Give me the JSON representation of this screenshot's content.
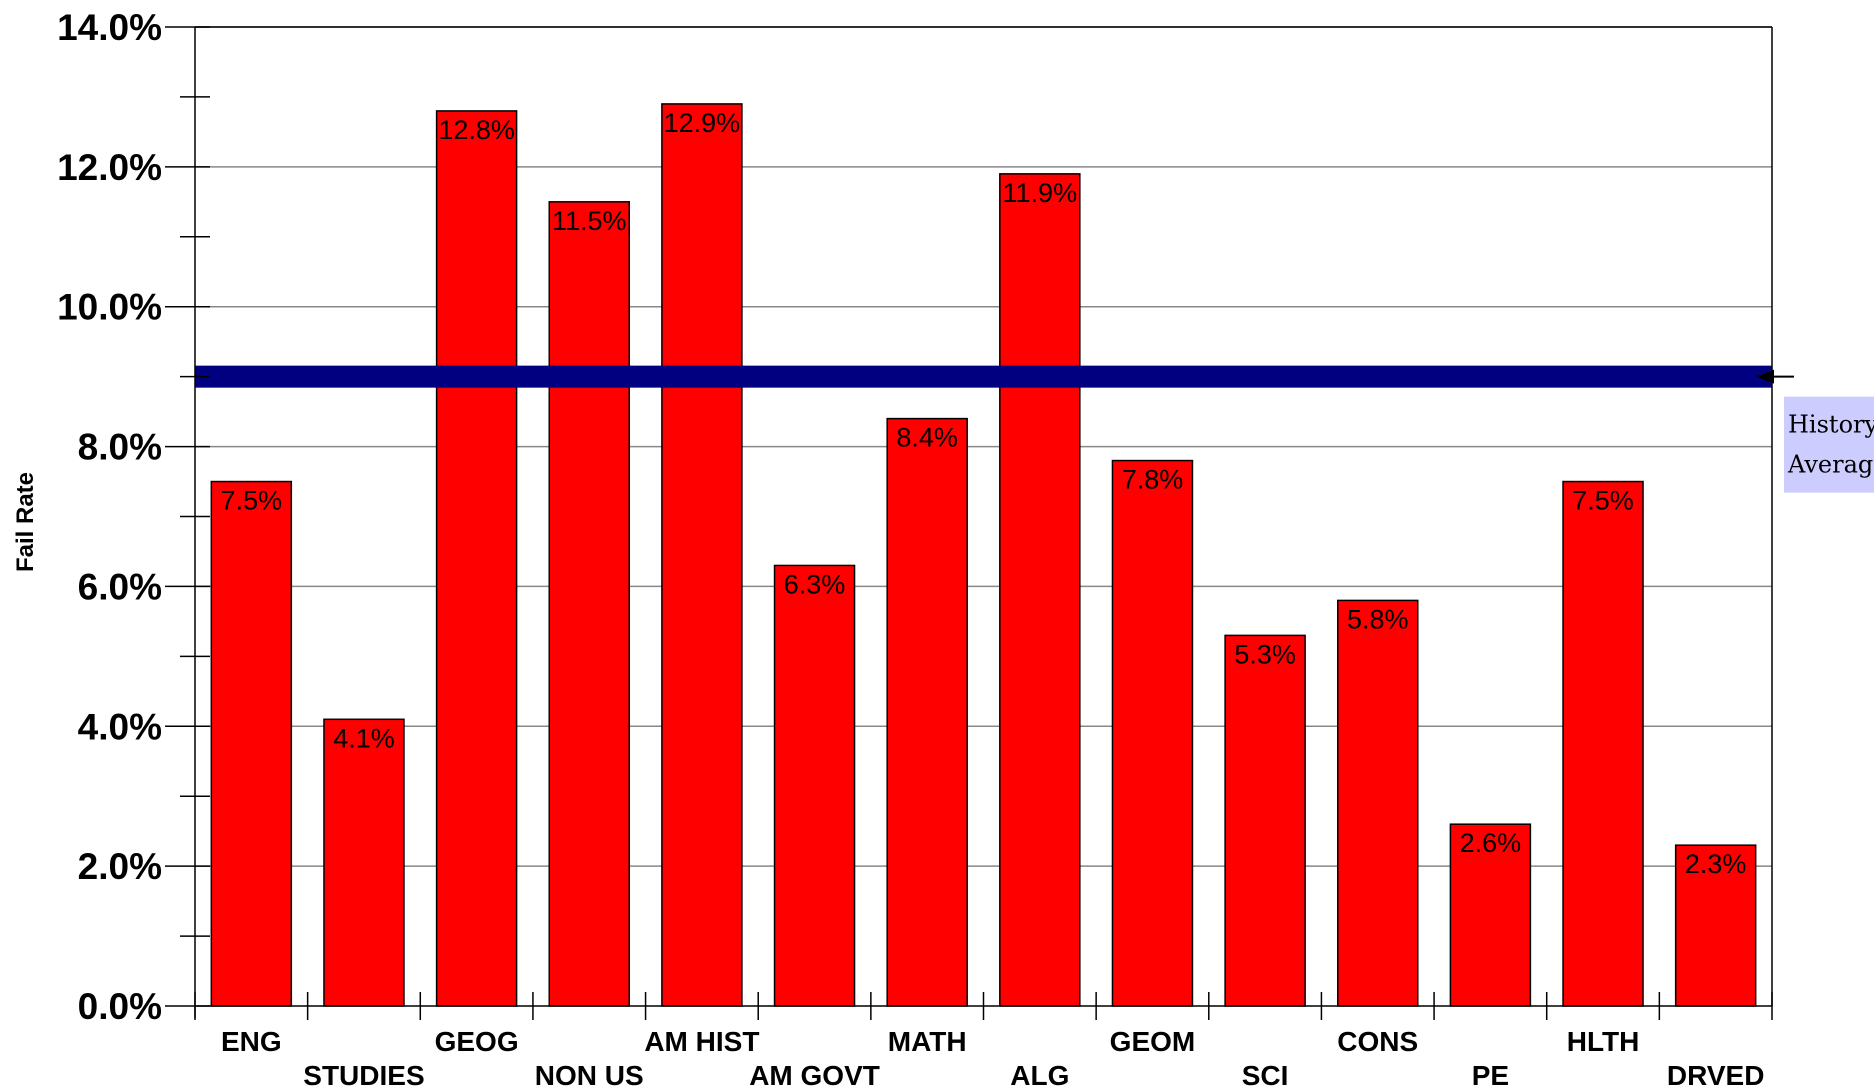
{
  "chart_data": {
    "type": "bar",
    "ylabel": "Fail Rate",
    "ylim": [
      0,
      14
    ],
    "yticks": [
      "0.0%",
      "2.0%",
      "4.0%",
      "6.0%",
      "8.0%",
      "10.0%",
      "12.0%",
      "14.0%"
    ],
    "grid": true,
    "categories": [
      "ENG",
      "STUDIES",
      "GEOG",
      "NON US",
      "AM HIST",
      "AM GOVT",
      "MATH",
      "ALG",
      "GEOM",
      "SCI",
      "CONS",
      "PE",
      "HLTH",
      "DRVED"
    ],
    "values": [
      7.5,
      4.1,
      12.8,
      11.5,
      12.9,
      6.3,
      8.4,
      11.9,
      7.8,
      5.3,
      5.8,
      2.6,
      7.5,
      2.3
    ],
    "data_labels": [
      "7.5%",
      "4.1%",
      "12.8%",
      "11.5%",
      "12.9%",
      "6.3%",
      "8.4%",
      "11.9%",
      "7.8%",
      "5.3%",
      "5.8%",
      "2.6%",
      "7.5%",
      "2.3%"
    ],
    "bar_color": "#ff0000",
    "reference_line": {
      "value": 9.0,
      "label_lines": [
        "History",
        "Average"
      ],
      "color": "#000080"
    }
  }
}
